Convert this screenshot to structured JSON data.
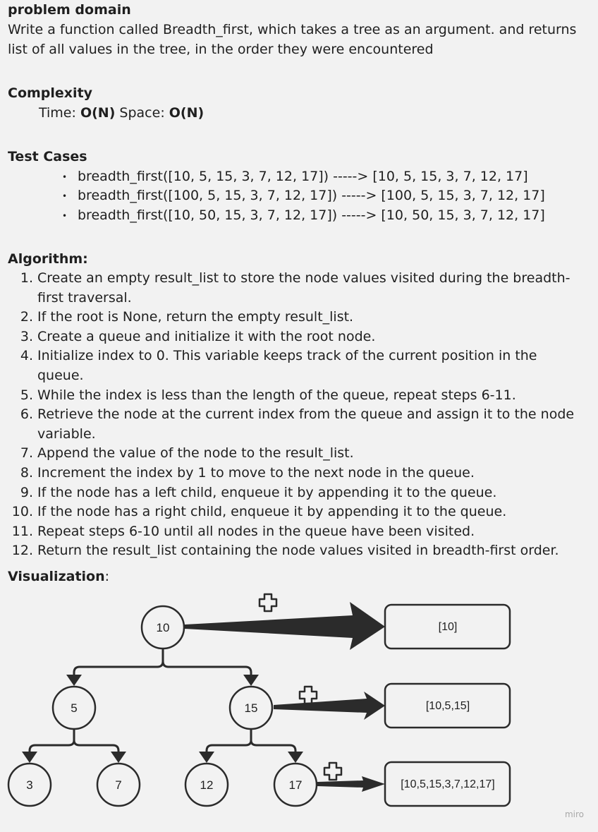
{
  "problem": {
    "title": "problem domain",
    "description": "Write a function called Breadth_first, which takes a tree as an argument. and returns list of all values in the tree, in the order they were encountered"
  },
  "complexity": {
    "title": "Complexity",
    "time_label": "Time:",
    "time_value": "O(N)",
    "space_label": "Space:",
    "space_value": "O(N)"
  },
  "test_cases": {
    "title": "Test Cases",
    "items": [
      "breadth_first([10, 5, 15, 3, 7, 12, 17]) -----> [10, 5, 15, 3, 7, 12, 17]",
      "breadth_first([100, 5, 15, 3, 7, 12, 17]) -----> [100, 5, 15, 3, 7, 12, 17]",
      "breadth_first([10, 50, 15, 3, 7, 12, 17]) -----> [10, 50, 15, 3, 7, 12, 17]"
    ]
  },
  "algorithm": {
    "title": "Algorithm:",
    "steps": [
      {
        "num": "1.",
        "text": "Create an empty result_list to store the node values visited during the breadth-first traversal."
      },
      {
        "num": "2.",
        "text": "If the root is None, return the empty result_list."
      },
      {
        "num": "3.",
        "text": "Create a queue and initialize it with the root node."
      },
      {
        "num": "4.",
        "text": "Initialize index to 0. This variable keeps track of the current position in the queue."
      },
      {
        "num": "5.",
        "text": "While the index is less than the length of the queue, repeat steps 6-11."
      },
      {
        "num": "6.",
        "text": "Retrieve the node at the current index from the queue and assign it to the node variable."
      },
      {
        "num": "7.",
        "text": "Append the value of the node to the result_list."
      },
      {
        "num": "8.",
        "text": "Increment the index by 1 to move to the next node in the queue."
      },
      {
        "num": "9.",
        "text": "If the node has a left child, enqueue it by appending it to the queue."
      },
      {
        "num": "10.",
        "text": "If the node has a right child, enqueue it by appending it to the queue."
      },
      {
        "num": "11.",
        "text": "Repeat steps 6-10 until all nodes in the queue have been visited."
      },
      {
        "num": "12.",
        "text": "Return the result_list containing the node values visited in breadth-first order."
      }
    ]
  },
  "visualization": {
    "title": "Visualization",
    "suffix": ":",
    "nodes": {
      "root": "10",
      "left": "5",
      "right": "15",
      "left_left": "3",
      "left_right": "7",
      "right_left": "12",
      "right_right": "17"
    },
    "results": [
      "[10]",
      "[10,5,15]",
      "[10,5,15,3,7,12,17]"
    ],
    "colors": {
      "stroke": "#2b2b2b",
      "node_fill": "#f2f2f2"
    }
  },
  "watermark": "miro"
}
